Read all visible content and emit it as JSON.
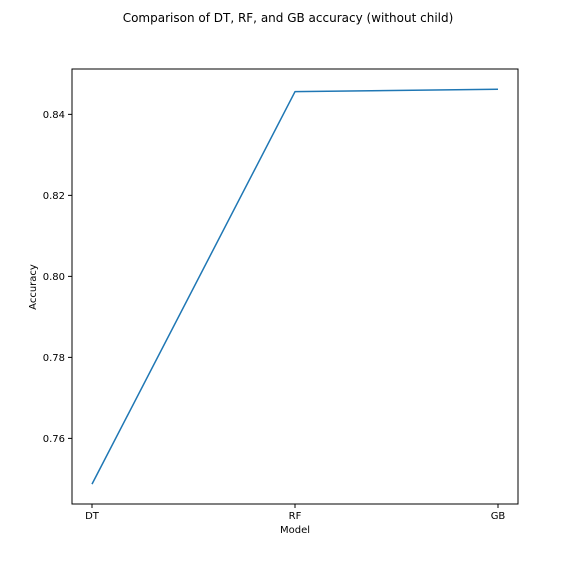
{
  "chart_data": {
    "type": "line",
    "title": "Comparison of DT, RF, and GB accuracy (without child)",
    "xlabel": "Model",
    "ylabel": "Accuracy",
    "categories": [
      "DT",
      "RF",
      "GB"
    ],
    "series": [
      {
        "values": [
          0.7487,
          0.8456,
          0.8462
        ],
        "color": "#1f77b4"
      }
    ],
    "yticks": [
      "0.76",
      "0.78",
      "0.80",
      "0.82",
      "0.84"
    ],
    "ylim": [
      0.7438,
      0.8512
    ],
    "grid": false,
    "legend": "none"
  }
}
